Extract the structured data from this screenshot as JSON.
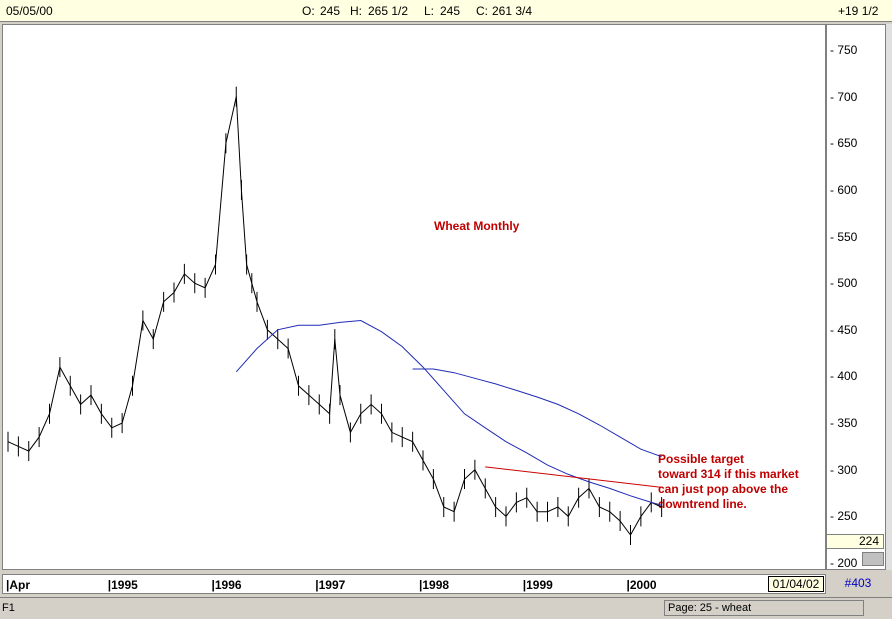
{
  "header": {
    "date": "05/05/00",
    "open_label": "O:",
    "open_value": "245",
    "high_label": "H:",
    "high_value": "265 1/2",
    "low_label": "L:",
    "low_value": "245",
    "close_label": "C:",
    "close_value": "261 3/4",
    "change": "+19 1/2"
  },
  "side": {
    "last_value": "224"
  },
  "footer": {
    "date_box": "01/04/02",
    "count": "#403"
  },
  "status": {
    "left": "F1",
    "page": "Page: 25 - wheat"
  },
  "chart_data": {
    "type": "line",
    "title": "Wheat Monthly",
    "annotation": [
      "Possible target",
      "toward 314 if this market",
      "can just pop above the",
      "downtrend line."
    ],
    "y_ticks": [
      "750",
      "700",
      "650",
      "600",
      "550",
      "500",
      "450",
      "400",
      "350",
      "300",
      "250",
      "200"
    ],
    "ylim": [
      200,
      760
    ],
    "x_ticks": [
      "Apr",
      "1995",
      "1996",
      "1997",
      "1998",
      "1999",
      "2000"
    ],
    "x_tick_years": [
      1994.25,
      1995.0,
      1996.0,
      1997.0,
      1998.0,
      1999.0,
      2000.0
    ],
    "xlim": [
      1994.0,
      2001.9
    ],
    "price_series": {
      "name": "",
      "x": [
        1994.0,
        1994.1,
        1994.2,
        1994.3,
        1994.4,
        1994.5,
        1994.6,
        1994.7,
        1994.8,
        1994.9,
        1995.0,
        1995.1,
        1995.2,
        1995.3,
        1995.4,
        1995.5,
        1995.6,
        1995.7,
        1995.8,
        1995.9,
        1996.0,
        1996.1,
        1996.2,
        1996.25,
        1996.3,
        1996.35,
        1996.4,
        1996.5,
        1996.6,
        1996.7,
        1996.8,
        1996.9,
        1997.0,
        1997.1,
        1997.15,
        1997.2,
        1997.3,
        1997.4,
        1997.5,
        1997.6,
        1997.7,
        1997.8,
        1997.9,
        1998.0,
        1998.1,
        1998.2,
        1998.3,
        1998.4,
        1998.5,
        1998.6,
        1998.7,
        1998.8,
        1998.9,
        1999.0,
        1999.1,
        1999.2,
        1999.3,
        1999.4,
        1999.5,
        1999.6,
        1999.7,
        1999.8,
        1999.9,
        2000.0,
        2000.1,
        2000.2,
        2000.3
      ],
      "y": [
        330,
        325,
        320,
        335,
        360,
        410,
        390,
        370,
        380,
        360,
        345,
        350,
        390,
        460,
        440,
        480,
        490,
        510,
        500,
        495,
        520,
        650,
        700,
        600,
        520,
        500,
        480,
        450,
        440,
        430,
        390,
        380,
        370,
        360,
        440,
        380,
        340,
        360,
        370,
        360,
        340,
        335,
        330,
        310,
        290,
        260,
        255,
        290,
        300,
        280,
        260,
        250,
        265,
        270,
        255,
        255,
        260,
        250,
        270,
        280,
        260,
        255,
        245,
        230,
        250,
        265,
        260
      ]
    },
    "ma_short": {
      "name": "",
      "x": [
        1996.2,
        1996.4,
        1996.6,
        1996.8,
        1997.0,
        1997.2,
        1997.4,
        1997.6,
        1997.8,
        1998.0,
        1998.2,
        1998.4,
        1998.6,
        1998.8,
        1999.0,
        1999.2,
        1999.4,
        1999.6,
        1999.8,
        2000.0,
        2000.2,
        2000.3
      ],
      "y": [
        405,
        430,
        450,
        455,
        455,
        458,
        460,
        448,
        432,
        410,
        385,
        360,
        345,
        330,
        318,
        305,
        295,
        287,
        280,
        272,
        265,
        262
      ]
    },
    "ma_long": {
      "name": "",
      "x": [
        1997.9,
        1998.1,
        1998.3,
        1998.5,
        1998.7,
        1998.9,
        1999.1,
        1999.3,
        1999.5,
        1999.7,
        1999.9,
        2000.1,
        2000.3
      ],
      "y": [
        408,
        408,
        404,
        398,
        392,
        385,
        378,
        370,
        360,
        348,
        335,
        322,
        314
      ]
    },
    "downtrend_line": {
      "x": [
        1998.6,
        2000.3
      ],
      "y": [
        303,
        281
      ]
    }
  }
}
